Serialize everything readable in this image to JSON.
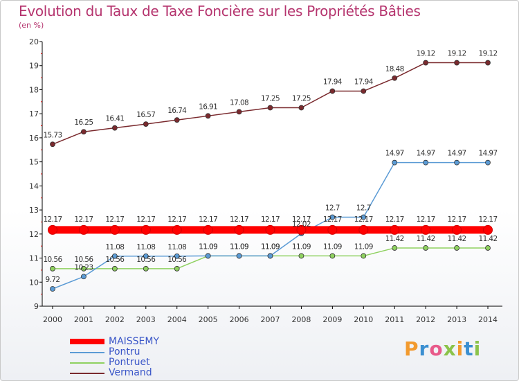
{
  "header": {
    "title": "Evolution du Taux de Taxe Foncière sur les Propriétés Bâties",
    "unit": "(en %)"
  },
  "logo": {
    "text": "Proxiti"
  },
  "chart_data": {
    "type": "line",
    "title": "Evolution du Taux de Taxe Foncière sur les Propriétés Bâties",
    "ylabel": "(en %)",
    "xlabel": "",
    "categories": [
      "2000",
      "2001",
      "2002",
      "2003",
      "2004",
      "2005",
      "2006",
      "2007",
      "2008",
      "2009",
      "2010",
      "2011",
      "2012",
      "2013",
      "2014"
    ],
    "ylim": [
      9,
      20
    ],
    "yticks": [
      9,
      10,
      11,
      12,
      13,
      14,
      15,
      16,
      17,
      18,
      19,
      20
    ],
    "grid": false,
    "legend_position": "bottom-left",
    "series": [
      {
        "name": "MAISSEMY",
        "color": "#ff0000",
        "values": [
          12.17,
          12.17,
          12.17,
          12.17,
          12.17,
          12.17,
          12.17,
          12.17,
          12.17,
          12.17,
          12.17,
          12.17,
          12.17,
          12.17,
          12.17
        ],
        "labels": [
          "12.17",
          "12.17",
          "12.17",
          "12.17",
          "12.17",
          "12.17",
          "12.17",
          "12.17",
          "12.17",
          "12.17",
          "12.17",
          "12.17",
          "12.17",
          "12.17",
          "12.17"
        ]
      },
      {
        "name": "Pontru",
        "color": "#5b9bd5",
        "values": [
          9.72,
          10.23,
          11.08,
          11.08,
          11.08,
          11.09,
          11.09,
          11.09,
          12.02,
          12.7,
          12.7,
          14.97,
          14.97,
          14.97,
          14.97
        ],
        "labels": [
          "9.72",
          "10.23",
          "11.08",
          "11.08",
          "11.08",
          "11.09",
          "11.09",
          "11.09",
          "12.02",
          "12.7",
          "12.7",
          "14.97",
          "14.97",
          "14.97",
          "14.97"
        ]
      },
      {
        "name": "Pontruet",
        "color": "#8fd160",
        "values": [
          10.56,
          10.56,
          10.56,
          10.56,
          10.56,
          11.09,
          11.09,
          11.09,
          11.09,
          11.09,
          11.09,
          11.42,
          11.42,
          11.42,
          11.42
        ],
        "labels": [
          "10.56",
          "10.56",
          "10.56",
          "10.56",
          "10.56",
          "11.09",
          "11.09",
          "11.09",
          "11.09",
          "11.09",
          "11.09",
          "11.42",
          "11.42",
          "11.42",
          "11.42"
        ]
      },
      {
        "name": "Vermand",
        "color": "#7a2a2e",
        "values": [
          15.73,
          16.25,
          16.41,
          16.57,
          16.74,
          16.91,
          17.08,
          17.25,
          17.25,
          17.94,
          17.94,
          18.48,
          19.12,
          19.12,
          19.12
        ],
        "labels": [
          "15.73",
          "16.25",
          "16.41",
          "16.57",
          "16.74",
          "16.91",
          "17.08",
          "17.25",
          "17.25",
          "17.94",
          "17.94",
          "18.48",
          "19.12",
          "19.12",
          "19.12"
        ]
      }
    ]
  }
}
